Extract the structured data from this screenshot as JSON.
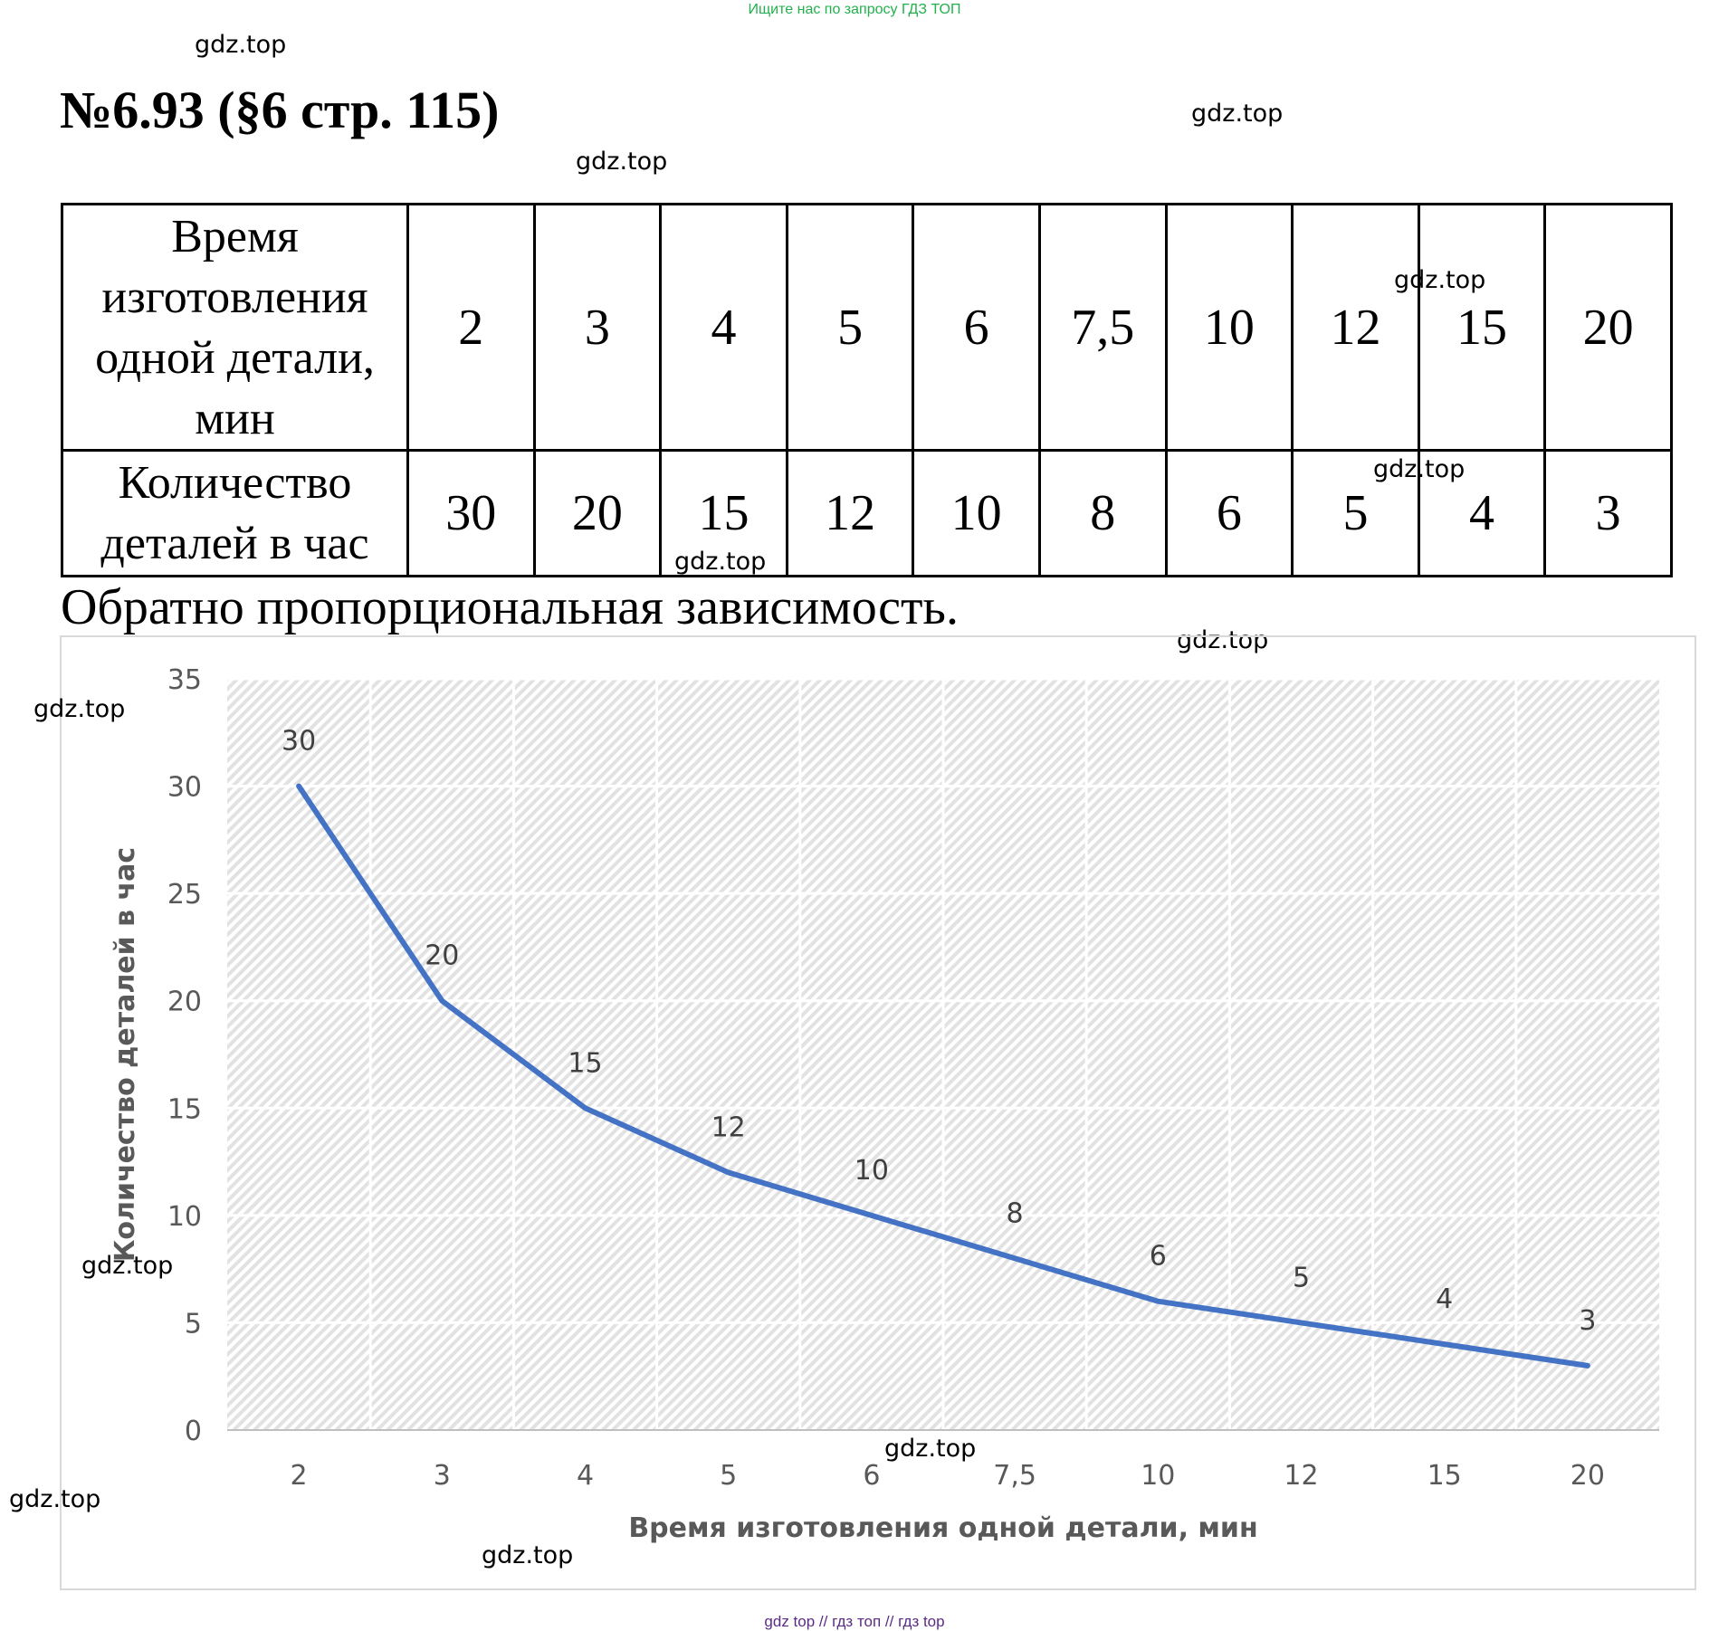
{
  "banner": "Ищите нас по запросу ГДЗ ТОП",
  "problem_title": "№6.93 (§6 стр. 115)",
  "table": {
    "row1_header": "Время изготовления одной детали, мин",
    "row2_header": "Количество деталей в час",
    "row1_values": [
      "2",
      "3",
      "4",
      "5",
      "6",
      "7,5",
      "10",
      "12",
      "15",
      "20"
    ],
    "row2_values": [
      "30",
      "20",
      "15",
      "12",
      "10",
      "8",
      "6",
      "5",
      "4",
      "3"
    ]
  },
  "conclusion": "Обратно пропорциональная зависимость.",
  "watermark": "gdz.top",
  "footer": "gdz top  //  гдз топ  //  гдз top",
  "colors": {
    "line": "#4472c4",
    "banner": "#22b14c",
    "footer": "#5b2c83",
    "axis_text": "#595959"
  },
  "chart_data": {
    "type": "line",
    "title": "",
    "categories": [
      "2",
      "3",
      "4",
      "5",
      "6",
      "7,5",
      "10",
      "12",
      "15",
      "20"
    ],
    "series": [
      {
        "name": "Количество деталей в час",
        "values": [
          30,
          20,
          15,
          12,
          10,
          8,
          6,
          5,
          4,
          3
        ]
      }
    ],
    "xlabel": "Время изготовления одной детали, мин",
    "ylabel": "Количество деталей в час",
    "ylim": [
      0,
      35
    ],
    "yticks": [
      0,
      5,
      10,
      15,
      20,
      25,
      30,
      35
    ],
    "grid": true,
    "data_labels": true,
    "legend": "none"
  }
}
